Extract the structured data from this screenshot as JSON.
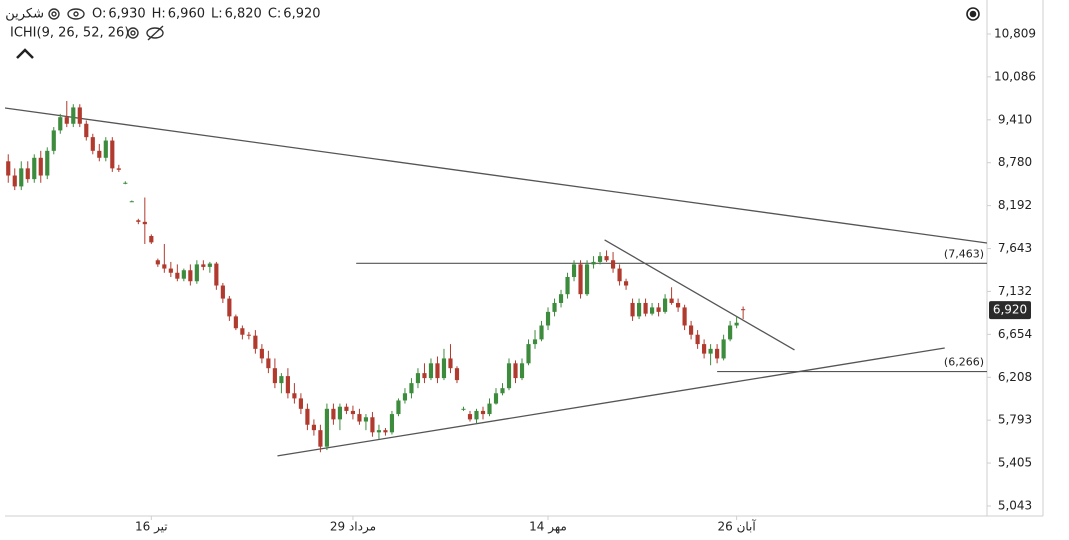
{
  "chart_data": {
    "type": "candlestick",
    "symbol": "شکرین",
    "legend_values": [
      {
        "label": "O:",
        "value": "6,930"
      },
      {
        "label": "H:",
        "value": "6,960"
      },
      {
        "label": "L:",
        "value": "6,820"
      },
      {
        "label": "C:",
        "value": "6,920"
      }
    ],
    "indicator": "ICHI(9, 26, 52, 26)",
    "log_scale": true,
    "up_color": "#3d8b3d",
    "down_color": "#b03a2e",
    "ylim": [
      4962,
      11419
    ],
    "yticks": [
      {
        "value": 10809,
        "label": "10,809"
      },
      {
        "value": 10086,
        "label": "10,086"
      },
      {
        "value": 9410,
        "label": "9,410"
      },
      {
        "value": 8780,
        "label": "8,780"
      },
      {
        "value": 8192,
        "label": "8,192"
      },
      {
        "value": 7643,
        "label": "7,643"
      },
      {
        "value": 7132,
        "label": "7,132"
      },
      {
        "value": 6654,
        "label": "6,654"
      },
      {
        "value": 6208,
        "label": "6,208"
      },
      {
        "value": 5793,
        "label": "5,793"
      },
      {
        "value": 5405,
        "label": "5,405"
      },
      {
        "value": 5043,
        "label": "5,043"
      }
    ],
    "xlim": [
      -0.5,
      150.5
    ],
    "categories": [
      null,
      null,
      null,
      null,
      null,
      null,
      null,
      null,
      null,
      null,
      null,
      null,
      null,
      null,
      null,
      null,
      null,
      null,
      null,
      null,
      null,
      null,
      "16 تیر",
      null,
      null,
      null,
      null,
      null,
      null,
      null,
      null,
      null,
      null,
      null,
      null,
      null,
      null,
      null,
      null,
      null,
      null,
      null,
      null,
      null,
      null,
      null,
      null,
      null,
      null,
      null,
      null,
      null,
      null,
      "29 مرداد",
      null,
      null,
      null,
      null,
      null,
      null,
      null,
      null,
      null,
      null,
      null,
      null,
      null,
      null,
      null,
      null,
      null,
      null,
      null,
      null,
      null,
      null,
      null,
      null,
      null,
      null,
      null,
      null,
      null,
      "14 مهر",
      null,
      null,
      null,
      null,
      null,
      null,
      null,
      null,
      null,
      null,
      null,
      null,
      null,
      null,
      null,
      null,
      null,
      null,
      null,
      null,
      null,
      null,
      null,
      null,
      null,
      null,
      null,
      null,
      "26 آبان",
      null
    ],
    "open": [
      8800,
      8600,
      8450,
      8700,
      8550,
      8850,
      8600,
      8950,
      9250,
      9450,
      9350,
      9600,
      9350,
      9150,
      8950,
      8850,
      9100,
      8700,
      8500,
      8250,
      8000,
      7980,
      7800,
      7500,
      7450,
      7400,
      7350,
      7280,
      7380,
      7250,
      7450,
      7420,
      7460,
      7200,
      7050,
      6850,
      6720,
      6650,
      6640,
      6500,
      6400,
      6300,
      6150,
      6220,
      6050,
      6000,
      5900,
      5750,
      5700,
      5550,
      5900,
      5800,
      5920,
      5880,
      5850,
      5780,
      5820,
      5680,
      5700,
      5680,
      5850,
      5980,
      6050,
      6150,
      6250,
      6200,
      6350,
      6200,
      6400,
      6300,
      5900,
      5850,
      5800,
      5880,
      5850,
      5950,
      6050,
      6100,
      6350,
      6200,
      6350,
      6550,
      6600,
      6750,
      6900,
      7000,
      7100,
      7300,
      7450,
      7100,
      7450,
      7480,
      7550,
      7500,
      7400,
      7250,
      7000,
      6850,
      7000,
      6880,
      6950,
      6900,
      7050,
      7000,
      6950,
      6750,
      6650,
      6550,
      6450,
      6500,
      6400,
      6600,
      6750,
      6930
    ],
    "high": [
      8900,
      8700,
      8800,
      8800,
      8900,
      8950,
      9000,
      9300,
      9500,
      9700,
      9650,
      9650,
      9400,
      9200,
      9050,
      9150,
      9150,
      8750,
      8520,
      8260,
      8020,
      8300,
      7820,
      7520,
      7700,
      7480,
      7450,
      7400,
      7450,
      7500,
      7500,
      7480,
      7480,
      7230,
      7080,
      6870,
      6750,
      6680,
      6700,
      6550,
      6480,
      6400,
      6250,
      6300,
      6150,
      6050,
      5950,
      5800,
      5750,
      5950,
      5950,
      5950,
      5950,
      5930,
      5900,
      5850,
      5870,
      5750,
      5720,
      5880,
      6000,
      6100,
      6200,
      6300,
      6350,
      6400,
      6420,
      6500,
      6550,
      6320,
      5920,
      5880,
      5900,
      5920,
      6000,
      6100,
      6150,
      6400,
      6380,
      6400,
      6600,
      6700,
      6800,
      6950,
      7050,
      7150,
      7350,
      7500,
      7500,
      7500,
      7550,
      7600,
      7620,
      7600,
      7450,
      7280,
      7050,
      7050,
      7050,
      7000,
      7000,
      7100,
      7180,
      7050,
      6980,
      6800,
      6700,
      6600,
      6550,
      6550,
      6650,
      6800,
      6850,
      6960
    ],
    "low": [
      8500,
      8400,
      8400,
      8500,
      8500,
      8500,
      8550,
      8900,
      9200,
      9300,
      9300,
      9300,
      9100,
      8900,
      8800,
      8800,
      8650,
      8650,
      8480,
      8240,
      7950,
      7700,
      7700,
      7420,
      7350,
      7300,
      7250,
      7250,
      7200,
      7220,
      7380,
      7350,
      7150,
      7000,
      6800,
      6700,
      6600,
      6600,
      6450,
      6350,
      6250,
      6100,
      6050,
      6000,
      5950,
      5850,
      5700,
      5650,
      5500,
      5520,
      5750,
      5700,
      5850,
      5800,
      5750,
      5700,
      5640,
      5620,
      5650,
      5660,
      5830,
      5950,
      6000,
      6100,
      6150,
      6180,
      6150,
      6180,
      6250,
      6150,
      5880,
      5780,
      5760,
      5800,
      5830,
      5940,
      6030,
      6080,
      6150,
      6180,
      6330,
      6500,
      6580,
      6700,
      6850,
      6950,
      7050,
      7250,
      7050,
      7080,
      7400,
      7450,
      7480,
      7350,
      7200,
      7150,
      6800,
      6820,
      6850,
      6860,
      6850,
      6880,
      6980,
      6900,
      6700,
      6600,
      6500,
      6400,
      6330,
      6350,
      6380,
      6580,
      6720,
      6820
    ],
    "close": [
      8600,
      8450,
      8700,
      8550,
      8850,
      8600,
      8950,
      9250,
      9450,
      9350,
      9600,
      9350,
      9150,
      8950,
      8850,
      9100,
      8700,
      8680,
      8500,
      8250,
      7980,
      7950,
      7720,
      7450,
      7400,
      7350,
      7280,
      7380,
      7250,
      7450,
      7420,
      7460,
      7200,
      7050,
      6850,
      6720,
      6650,
      6640,
      6500,
      6400,
      6300,
      6150,
      6220,
      6050,
      6000,
      5900,
      5750,
      5700,
      5550,
      5900,
      5800,
      5920,
      5880,
      5850,
      5780,
      5820,
      5680,
      5700,
      5680,
      5850,
      5980,
      6050,
      6150,
      6250,
      6200,
      6350,
      6200,
      6400,
      6300,
      6180,
      5900,
      5800,
      5880,
      5850,
      5950,
      6050,
      6100,
      6350,
      6200,
      6350,
      6550,
      6600,
      6750,
      6900,
      7000,
      7100,
      7300,
      7450,
      7100,
      7450,
      7480,
      7550,
      7500,
      7400,
      7250,
      7200,
      6850,
      7000,
      6880,
      6950,
      6900,
      7050,
      7000,
      6950,
      6750,
      6650,
      6550,
      6450,
      6500,
      6400,
      6600,
      6750,
      6780,
      6920
    ],
    "trend_lines": [
      {
        "points": [
          [
            -0.6,
            9592
          ],
          [
            150.5,
            7712
          ]
        ]
      },
      {
        "points": [
          [
            41.4,
            5468
          ],
          [
            144,
            6509
          ]
        ]
      },
      {
        "points": [
          [
            91.7,
            7750
          ],
          [
            120.9,
            6488
          ]
        ]
      }
    ],
    "levels": [
      {
        "start": 53.5,
        "value": 7463,
        "label": "(7,463)"
      },
      {
        "start": 109,
        "value": 6266,
        "label": "(6,266)"
      }
    ]
  }
}
